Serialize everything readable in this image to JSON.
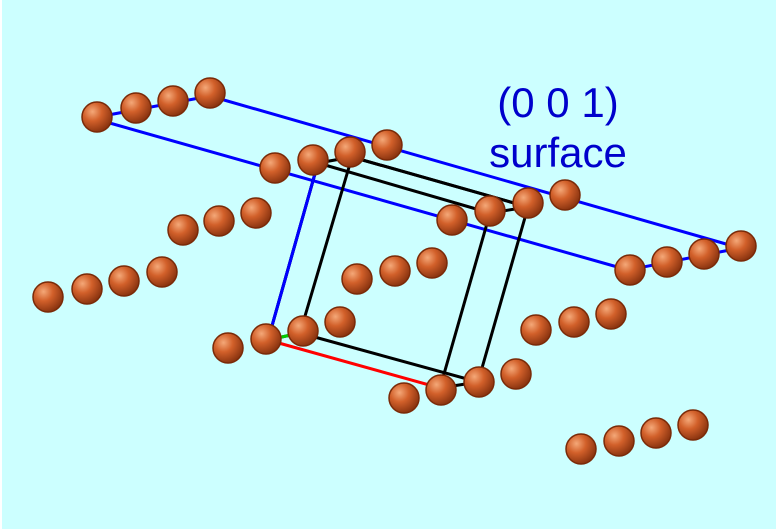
{
  "label": {
    "miller_index": "(0 0 1)",
    "plane_name": "surface"
  },
  "colors": {
    "background": "#ccffff",
    "atom": "#cc5a24",
    "atom_highlight": "#f0a070",
    "atom_edge": "#7a2a08",
    "surface_plane": "#0000ff",
    "unit_cell": "#000000",
    "axis_a": "#ff0000",
    "axis_b": "#00cc00",
    "axis_c": "#0000ff",
    "label_text": "#0000cc"
  }
}
